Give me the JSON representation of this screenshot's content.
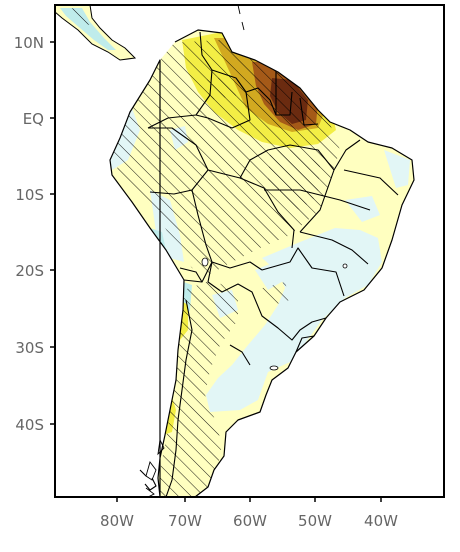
{
  "map": {
    "lat_labels": [
      "10N",
      "EQ",
      "10S",
      "20S",
      "30S",
      "40S"
    ],
    "lon_labels": [
      "80W",
      "70W",
      "60W",
      "50W",
      "40W"
    ],
    "lon_range": [
      -89.5,
      -32
    ],
    "lat_range": [
      -49.5,
      13.5
    ],
    "colors": {
      "ocean": "#ffffff",
      "light_cyan": "#e2f6f6",
      "cyan": "#bfeceb",
      "light_yellow": "#ffffbf",
      "yellow": "#f3ee45",
      "mustard": "#d2a920",
      "brown": "#a55a18",
      "dark_brown": "#6b2b10",
      "land_base": "#ffffc0",
      "hatch": "#000000",
      "border": "#000000",
      "tick_label": "#666666"
    }
  }
}
